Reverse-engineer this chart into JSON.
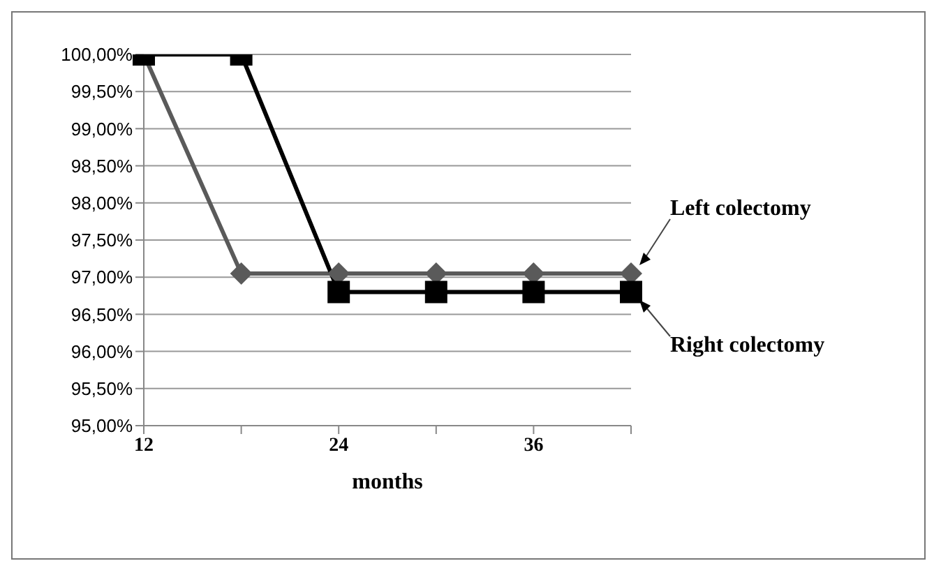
{
  "chart_data": {
    "type": "line",
    "xlabel": "months",
    "categories": [
      "12",
      null,
      "24",
      null,
      "36",
      null
    ],
    "series": [
      {
        "name": "Left colectomy",
        "color": "#5a5a5a",
        "marker": "diamond",
        "values": [
          100,
          97.05,
          97.05,
          97.05,
          97.05,
          97.05
        ]
      },
      {
        "name": "Right colectomy",
        "color": "#000000",
        "marker": "square",
        "values": [
          100,
          100,
          96.8,
          96.8,
          96.8,
          96.8
        ]
      }
    ],
    "ylim": [
      95,
      100
    ],
    "yticks": [
      {
        "value": 95,
        "label": "95,00%"
      },
      {
        "value": 95.5,
        "label": "95,50%"
      },
      {
        "value": 96,
        "label": "96,00%"
      },
      {
        "value": 96.5,
        "label": "96,50%"
      },
      {
        "value": 97,
        "label": "97,00%"
      },
      {
        "value": 97.5,
        "label": "97,50%"
      },
      {
        "value": 98,
        "label": "98,00%"
      },
      {
        "value": 98.5,
        "label": "98,50%"
      },
      {
        "value": 99,
        "label": "99,00%"
      },
      {
        "value": 99.5,
        "label": "99,50%"
      },
      {
        "value": 100,
        "label": "100,00%"
      }
    ],
    "grid": "y",
    "legend": false
  }
}
